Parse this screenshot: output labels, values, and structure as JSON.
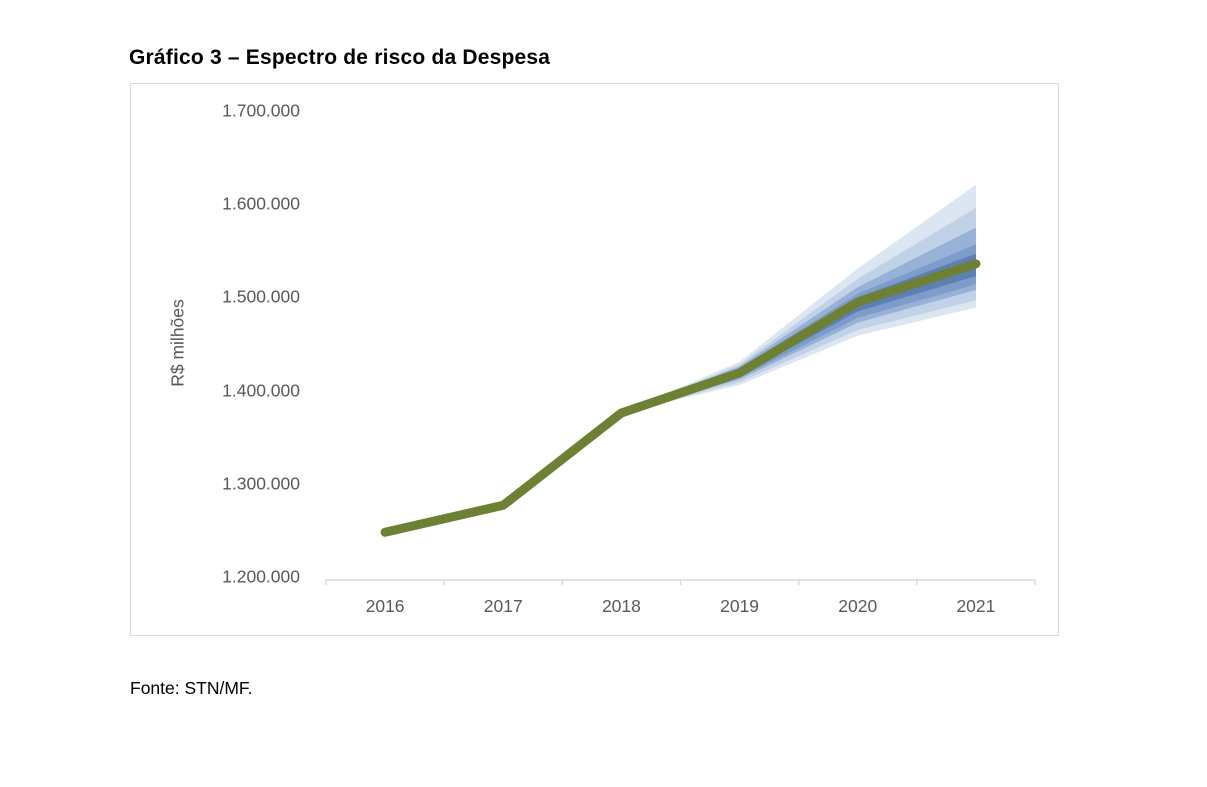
{
  "page": {
    "title": "Gráfico 3 – Espectro de risco da Despesa",
    "source_note": "Fonte: STN/MF."
  },
  "chart_data": {
    "type": "line",
    "subtype": "fan-chart",
    "title": "Gráfico 3 – Espectro de risco da Despesa",
    "ylabel": "R$ milhões",
    "xlabel": "",
    "legend": "none",
    "grid": false,
    "categories": [
      "2016",
      "2017",
      "2018",
      "2019",
      "2020",
      "2021"
    ],
    "ylim": [
      1200000,
      1700000
    ],
    "y_ticks": [
      {
        "label": "1.200.000",
        "value": 1200000
      },
      {
        "label": "1.300.000",
        "value": 1300000
      },
      {
        "label": "1.400.000",
        "value": 1400000
      },
      {
        "label": "1.500.000",
        "value": 1500000
      },
      {
        "label": "1.600.000",
        "value": 1600000
      },
      {
        "label": "1.700.000",
        "value": 1700000
      }
    ],
    "central": [
      1248000,
      1277000,
      1376000,
      1419000,
      1495000,
      1536000
    ],
    "fan_start_index": 2,
    "fan_years": [
      "2018",
      "2019",
      "2020",
      "2021"
    ],
    "bands": [
      {
        "name": "band-innermost",
        "color": "#5d80b2",
        "upper": [
          1376000,
          1422000,
          1500000,
          1547000
        ],
        "lower": [
          1376000,
          1416000,
          1485000,
          1523000
        ]
      },
      {
        "name": "band-2",
        "color": "#7e9cc9",
        "upper": [
          1376000,
          1424000,
          1504000,
          1557000
        ],
        "lower": [
          1376000,
          1414000,
          1478000,
          1514000
        ]
      },
      {
        "name": "band-3",
        "color": "#98b2d7",
        "upper": [
          1376000,
          1426000,
          1511000,
          1575000
        ],
        "lower": [
          1376000,
          1412000,
          1473000,
          1508000
        ]
      },
      {
        "name": "band-4",
        "color": "#c0d1e8",
        "upper": [
          1376000,
          1428000,
          1520000,
          1596000
        ],
        "lower": [
          1376000,
          1409000,
          1465000,
          1497000
        ]
      },
      {
        "name": "band-outermost",
        "color": "#dce6f2",
        "upper": [
          1376000,
          1431000,
          1531000,
          1621000
        ],
        "lower": [
          1376000,
          1406000,
          1459000,
          1489000
        ]
      }
    ],
    "colors": {
      "central_line": "#6e8033",
      "axis_line": "#d9d9d9",
      "tick_labels": "#595959",
      "title": "#000000"
    }
  }
}
